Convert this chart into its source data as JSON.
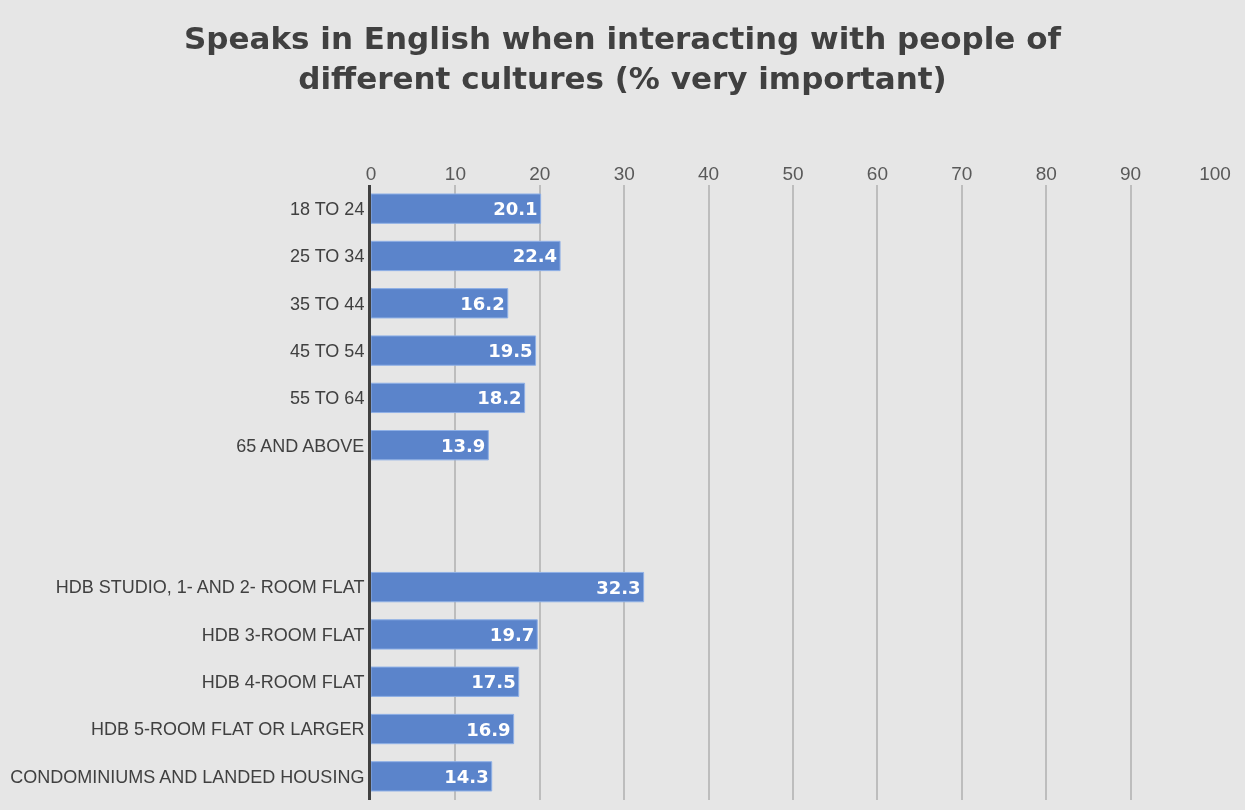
{
  "chart_data": {
    "type": "bar",
    "orientation": "horizontal",
    "title": "Speaks in English when interacting with people of different cultures (% very important)",
    "categories": [
      "18 TO 24",
      "25 TO 34",
      "35 TO 44",
      "45 TO 54",
      "55 TO 64",
      "65 AND ABOVE",
      null,
      null,
      "HDB STUDIO, 1- AND 2- ROOM FLAT",
      "HDB 3-ROOM FLAT",
      "HDB 4-ROOM FLAT",
      "HDB 5-ROOM FLAT OR LARGER",
      "CONDOMINIUMS AND LANDED HOUSING"
    ],
    "values": [
      20.1,
      22.4,
      16.2,
      19.5,
      18.2,
      13.9,
      null,
      null,
      32.3,
      19.7,
      17.5,
      16.9,
      14.3
    ],
    "color": "#5b84cb",
    "xlim": [
      0,
      100
    ],
    "xticks": [
      0,
      10,
      20,
      30,
      40,
      50,
      60,
      70,
      80,
      90,
      100
    ],
    "grid": "x",
    "data_labels": true,
    "legend": false
  }
}
